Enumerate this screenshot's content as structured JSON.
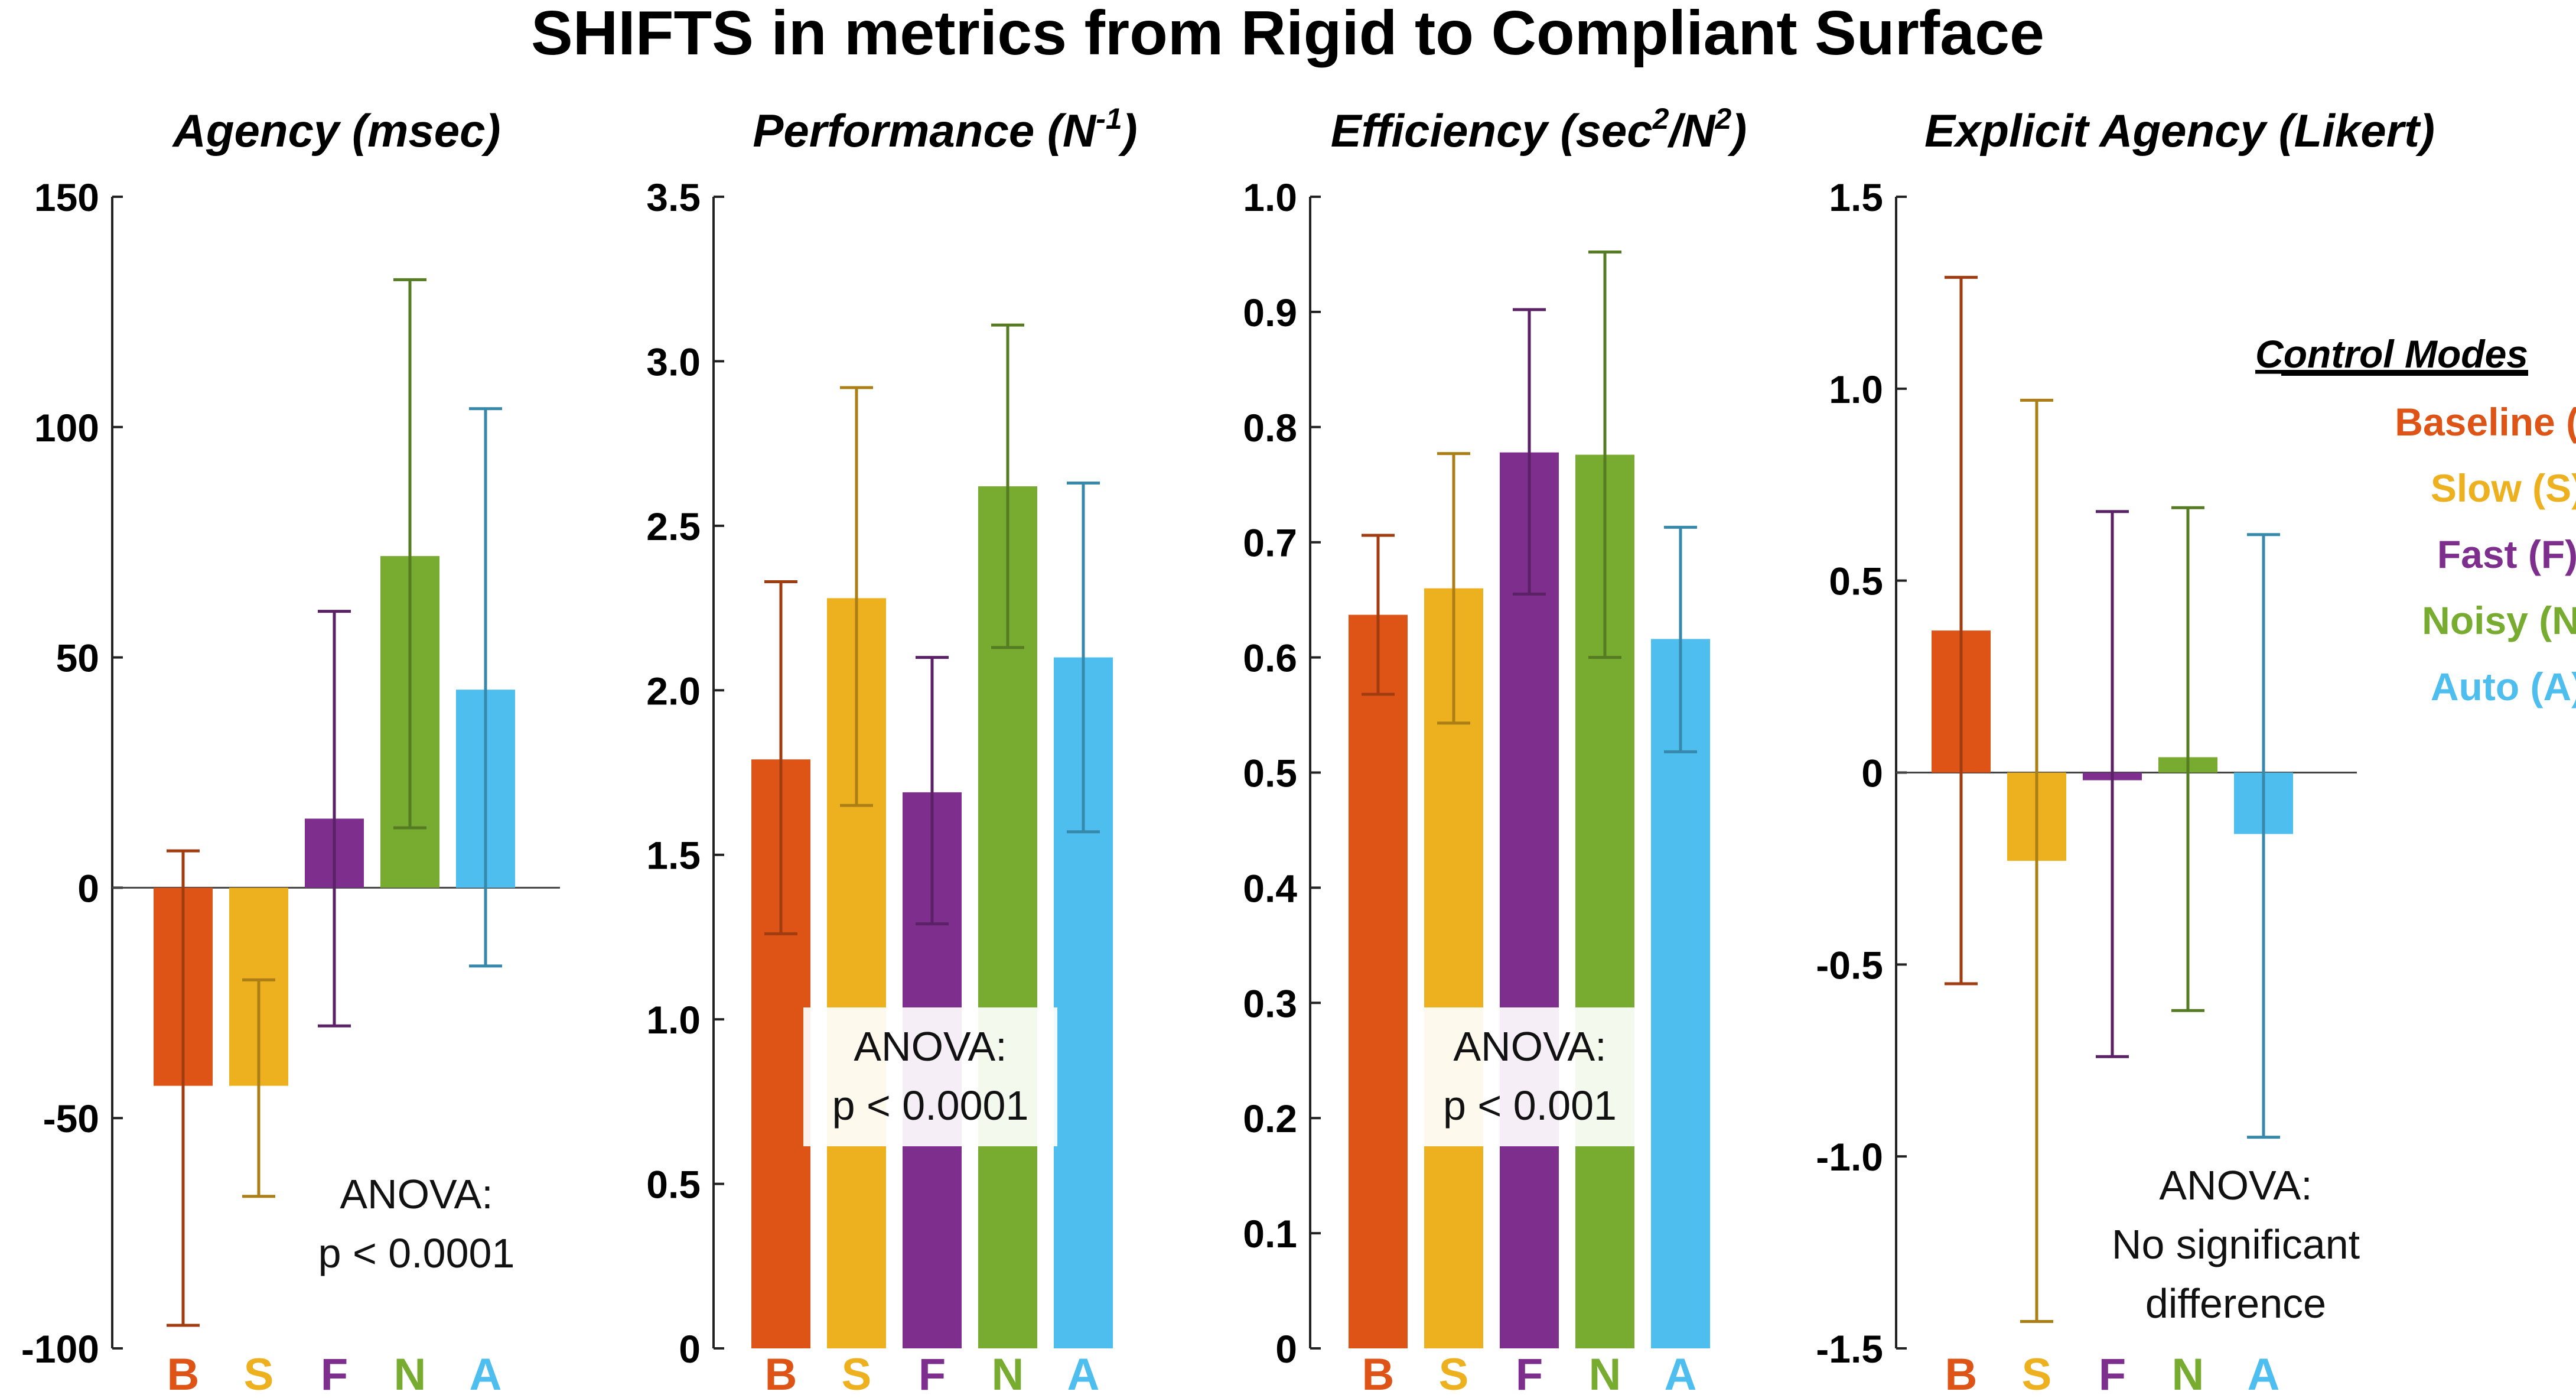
{
  "figure_title": "SHIFTS in metrics from Rigid to Compliant Surface",
  "colors": {
    "B": "#DE5316",
    "S": "#EDB01E",
    "F": "#7E2E8D",
    "N": "#77AC30",
    "A": "#4DBEEE"
  },
  "legend": {
    "title": "Control Modes",
    "items": [
      {
        "key": "B",
        "label": "Baseline (B)"
      },
      {
        "key": "S",
        "label": "Slow (S)"
      },
      {
        "key": "F",
        "label": "Fast (F)"
      },
      {
        "key": "N",
        "label": "Noisy (N)"
      },
      {
        "key": "A",
        "label": "Auto (A)"
      }
    ]
  },
  "chart_data": [
    {
      "type": "bar",
      "title": "Agency (msec)",
      "categories": [
        "B",
        "S",
        "F",
        "N",
        "A"
      ],
      "values": [
        -43,
        -43,
        15,
        72,
        43
      ],
      "err_low": [
        -95,
        -67,
        -30,
        13,
        -17
      ],
      "err_high": [
        8,
        -20,
        60,
        132,
        104
      ],
      "ylim": [
        -100,
        150
      ],
      "yticks": [
        -100,
        -50,
        0,
        50,
        100,
        150
      ],
      "ytick_labels": [
        "-100",
        "-50",
        "0",
        "50",
        "100",
        "150"
      ],
      "annotation": [
        "ANOVA:",
        "p < 0.0001"
      ]
    },
    {
      "type": "bar",
      "title": "Performance (N-1)",
      "categories": [
        "B",
        "S",
        "F",
        "N",
        "A"
      ],
      "values": [
        1.79,
        2.28,
        1.69,
        2.62,
        2.1
      ],
      "err_low": [
        1.26,
        1.65,
        1.29,
        2.13,
        1.57
      ],
      "err_high": [
        2.33,
        2.92,
        2.1,
        3.11,
        2.63
      ],
      "ylim": [
        0,
        3.5
      ],
      "yticks": [
        0,
        0.5,
        1.0,
        1.5,
        2.0,
        2.5,
        3.0,
        3.5
      ],
      "ytick_labels": [
        "0",
        "0.5",
        "1.0",
        "1.5",
        "2.0",
        "2.5",
        "3.0",
        "3.5"
      ],
      "annotation": [
        "ANOVA:",
        "p < 0.0001"
      ]
    },
    {
      "type": "bar",
      "title": "Efficiency (sec2/N2)",
      "categories": [
        "B",
        "S",
        "F",
        "N",
        "A"
      ],
      "values": [
        0.637,
        0.66,
        0.778,
        0.776,
        0.616
      ],
      "err_low": [
        0.568,
        0.543,
        0.655,
        0.6,
        0.518
      ],
      "err_high": [
        0.706,
        0.777,
        0.902,
        0.952,
        0.713
      ],
      "ylim": [
        0,
        1.0
      ],
      "yticks": [
        0,
        0.1,
        0.2,
        0.3,
        0.4,
        0.5,
        0.6,
        0.7,
        0.8,
        0.9,
        1.0
      ],
      "ytick_labels": [
        "0",
        "0.1",
        "0.2",
        "0.3",
        "0.4",
        "0.5",
        "0.6",
        "0.7",
        "0.8",
        "0.9",
        "1.0"
      ],
      "annotation": [
        "ANOVA:",
        "p < 0.001"
      ]
    },
    {
      "type": "bar",
      "title": "Explicit Agency (Likert)",
      "categories": [
        "B",
        "S",
        "F",
        "N",
        "A"
      ],
      "values": [
        0.37,
        -0.23,
        -0.02,
        0.04,
        -0.16
      ],
      "err_low": [
        -0.55,
        -1.43,
        -0.74,
        -0.62,
        -0.95
      ],
      "err_high": [
        1.29,
        0.97,
        0.68,
        0.69,
        0.62
      ],
      "ylim": [
        -1.5,
        1.5
      ],
      "yticks": [
        -1.5,
        -1.0,
        -0.5,
        0,
        0.5,
        1.0,
        1.5
      ],
      "ytick_labels": [
        "-1.5",
        "-1.0",
        "-0.5",
        "0",
        "0.5",
        "1.0",
        "1.5"
      ],
      "annotation": [
        "ANOVA:",
        "No significant",
        "difference"
      ]
    }
  ]
}
